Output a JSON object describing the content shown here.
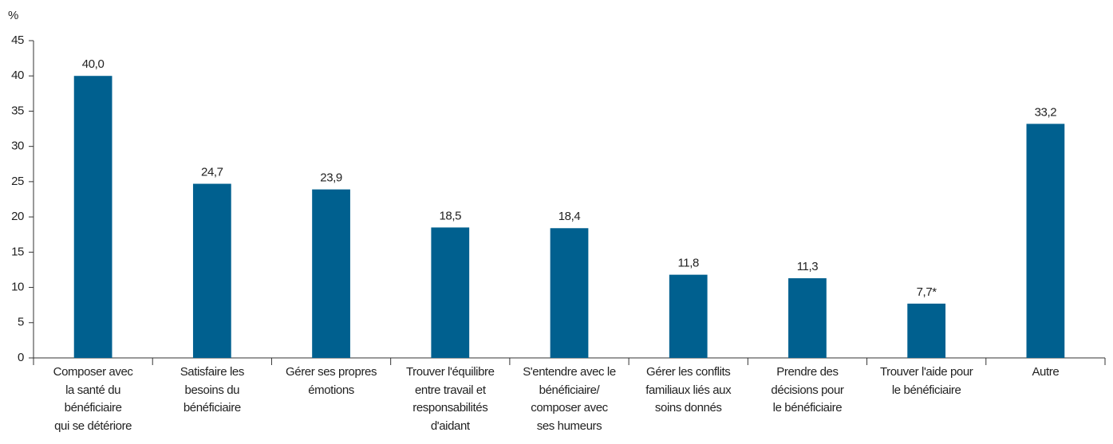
{
  "chart_data": {
    "type": "bar",
    "y_label": "%",
    "categories": [
      "Composer avec\nla santé du\nbénéficiaire\nqui se détériore",
      "Satisfaire les\nbesoins du\nbénéficiaire",
      "Gérer ses propres\némotions",
      "Trouver l'équilibre\nentre travail et\nresponsabilités\nd'aidant",
      "S'entendre avec le\nbénéficiaire/\ncomposer avec\nses humeurs",
      "Gérer les conflits\nfamiliaux liés aux\nsoins donnés",
      "Prendre des\ndécisions pour\nle bénéficiaire",
      "Trouver l'aide pour\nle bénéficiaire",
      "Autre"
    ],
    "values": [
      40.0,
      24.7,
      23.9,
      18.5,
      18.4,
      11.8,
      11.3,
      7.7,
      33.2
    ],
    "value_labels": [
      "40,0",
      "24,7",
      "23,9",
      "18,5",
      "18,4",
      "11,8",
      "11,3",
      "7,7*",
      "33,2"
    ],
    "color": "#00608f",
    "ylim": [
      0,
      45
    ],
    "yticks": [
      0,
      5,
      10,
      15,
      20,
      25,
      30,
      35,
      40,
      45
    ],
    "grid": false
  }
}
